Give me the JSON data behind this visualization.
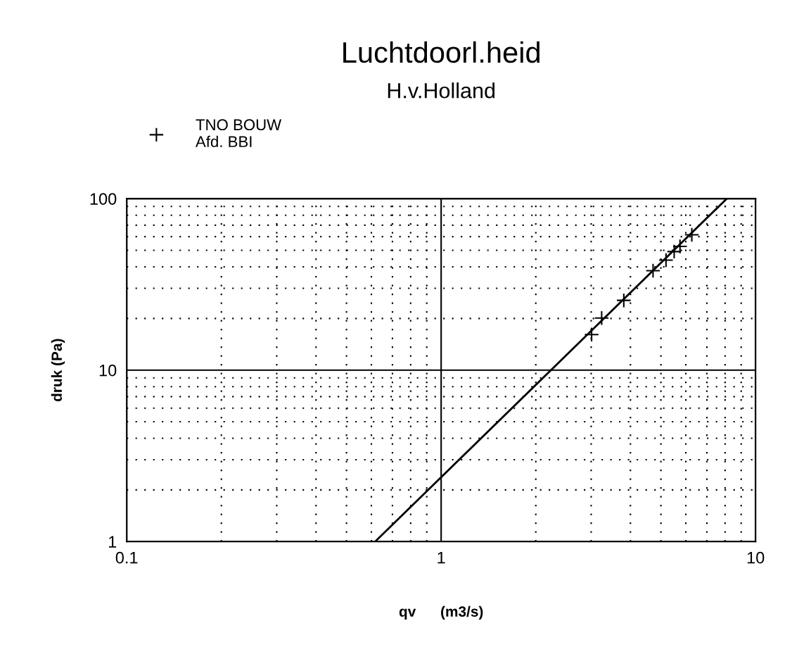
{
  "chart_data": {
    "type": "scatter",
    "title": "Luchtdoorl.heid",
    "subtitle": "H.v.Holland",
    "xlabel": "qv      (m3/s)",
    "ylabel": "druk (Pa)",
    "series": [
      {
        "name": "TNO BOUW\nAfd. BBI",
        "color": "#000000",
        "marker": "cross",
        "x": [
          3.01,
          3.24,
          3.81,
          4.72,
          5.19,
          5.51,
          5.75,
          6.27
        ],
        "values": [
          16.1,
          20.1,
          25.5,
          38.0,
          43.8,
          49.1,
          52.6,
          61.5
        ]
      },
      {
        "type": "line",
        "color": "#000000",
        "line_style": "solid",
        "x": [
          0.617,
          8.1
        ],
        "values": [
          1,
          100
        ]
      }
    ],
    "log": "xy",
    "xlim": [
      0.1,
      10
    ],
    "ylim": [
      1,
      100
    ],
    "xticks": [
      0.1,
      1,
      10
    ],
    "yticks": [
      1,
      10,
      100
    ],
    "grid": true,
    "legend": "top left"
  }
}
